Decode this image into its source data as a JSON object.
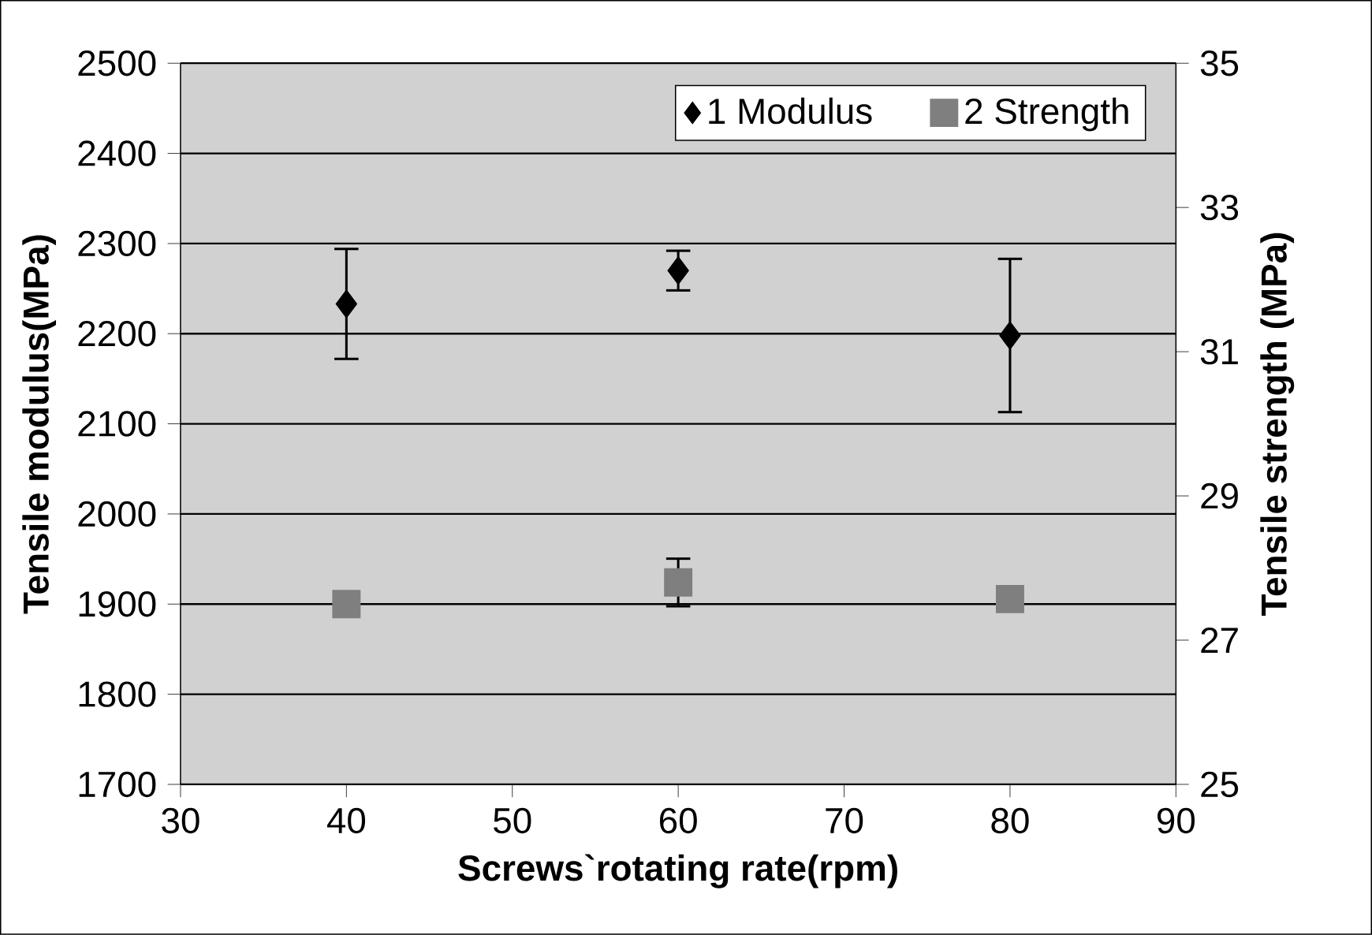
{
  "chart_data": {
    "type": "scatter",
    "xlabel": "Screws`rotating rate(rpm)",
    "ylabel": "Tensile modulus(MPa)",
    "y2label": "Tensile strength (MPa)",
    "x": [
      40,
      60,
      80
    ],
    "series": [
      {
        "name": "1 Modulus",
        "color": "#000000",
        "marker": "diamond",
        "values": [
          2233,
          2270,
          2198
        ],
        "errors": [
          61,
          22,
          85
        ]
      },
      {
        "name": "2 Strength",
        "color": "#7f7f7f",
        "marker": "square",
        "axis": "y2",
        "values": [
          27.5,
          27.8,
          27.57
        ],
        "errors": [
          null,
          0.33,
          null
        ]
      }
    ],
    "xlim": [
      30,
      90
    ],
    "xticks": [
      30,
      40,
      50,
      60,
      70,
      80,
      90
    ],
    "ylim": [
      1700,
      2500
    ],
    "yticks": [
      1700,
      1800,
      1900,
      2000,
      2100,
      2200,
      2300,
      2400,
      2500
    ],
    "y2lim": [
      25,
      35
    ],
    "y2ticks": [
      25,
      27,
      29,
      31,
      33,
      35
    ],
    "grid": "y",
    "legend": "top right"
  }
}
